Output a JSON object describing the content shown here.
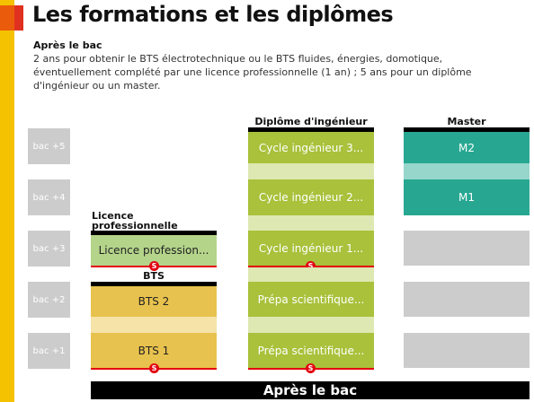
{
  "title": "Les formations et les diplômes",
  "intro": {
    "heading": "Après le bac",
    "text": "2 ans pour obtenir le BTS électrotechnique ou le BTS fluides, énergies, domotique, éventuellement complété par une licence professionnelle (1 an) ; 5 ans pour un diplôme d'ingénieur ou un master."
  },
  "levels": [
    "bac +5",
    "bac +4",
    "bac +3",
    "bac +2",
    "bac +1"
  ],
  "columns": {
    "licence": {
      "label": "Licence professionnelle",
      "cells": [
        "Licence profession..."
      ]
    },
    "bts": {
      "label": "BTS",
      "cells": [
        "BTS 2",
        "BTS 1"
      ]
    },
    "ingenieur": {
      "label": "Diplôme d'ingénieur",
      "cells": [
        "Cycle ingénieur 3...",
        "Cycle ingénieur 2...",
        "Cycle ingénieur 1...",
        "Prépa scientifique...",
        "Prépa scientifique..."
      ]
    },
    "master": {
      "label": "Master",
      "cells": [
        "M2",
        "M1"
      ]
    }
  },
  "selection_marker": "S",
  "footer": "Après le bac",
  "colors": {
    "accent_yellow": "#f4c200",
    "accent_orange": "#ea5b0c",
    "level_grey": "#cccccc",
    "bts": "#e8c24e",
    "licence": "#b4d48a",
    "ingenieur": "#a9c13b",
    "master": "#27a791",
    "marker_red": "#e3000f"
  }
}
